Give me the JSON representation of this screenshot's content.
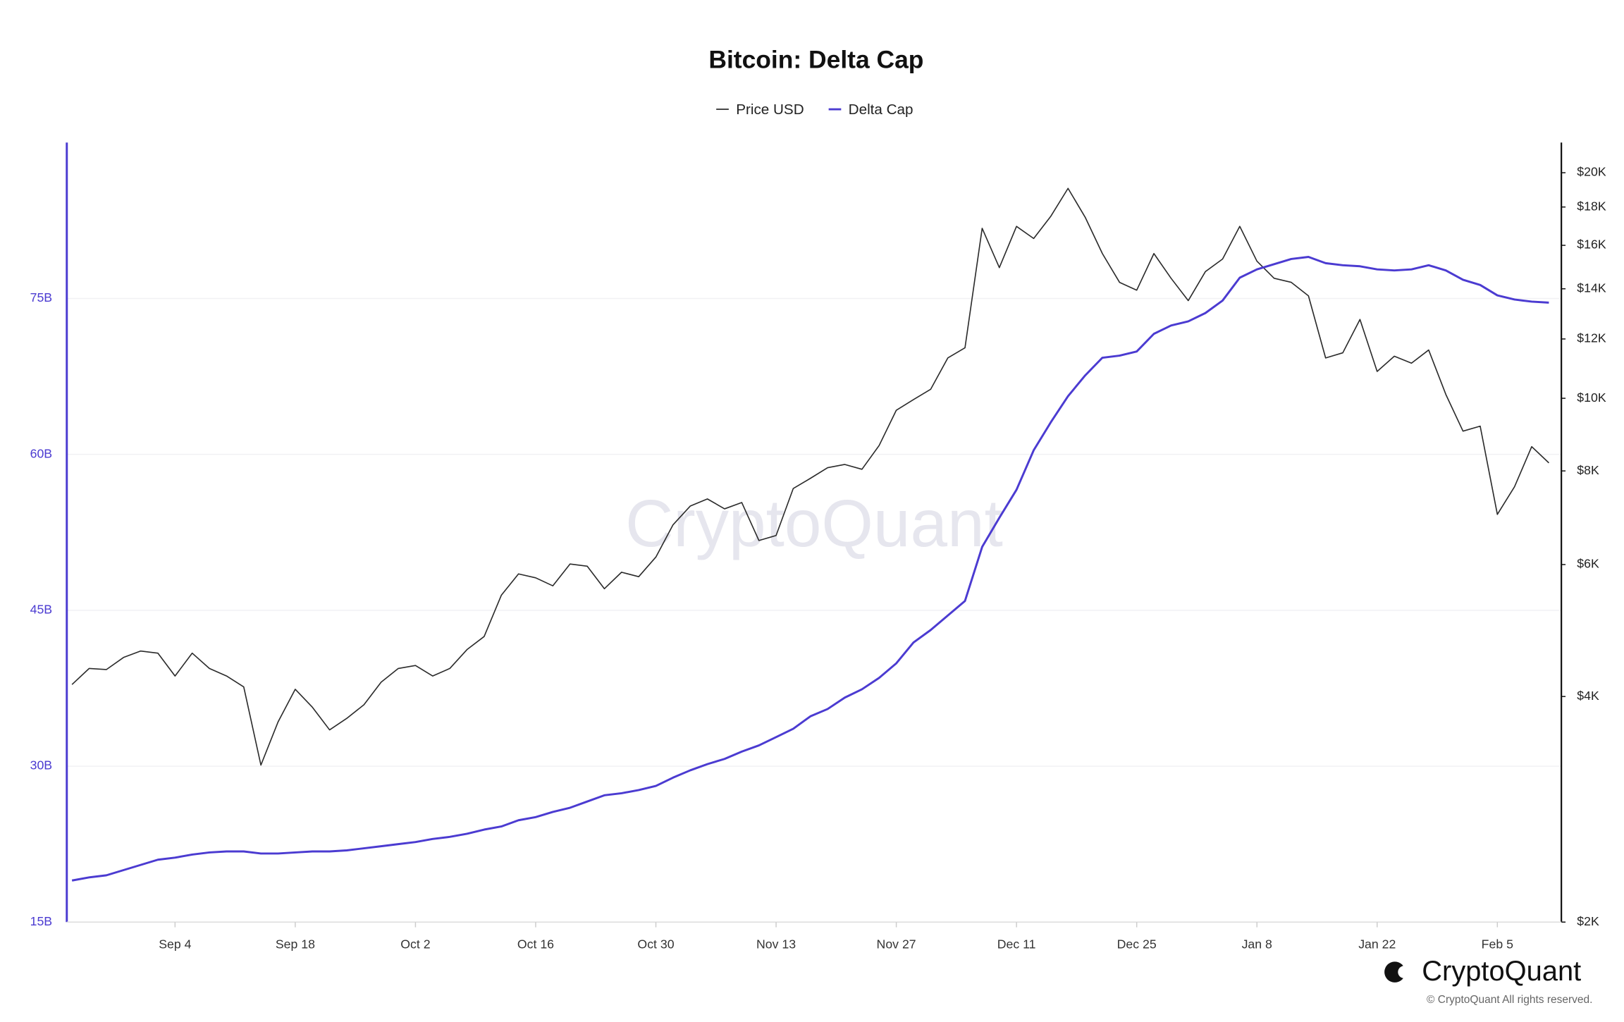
{
  "chart_data": {
    "type": "line",
    "title": "Bitcoin: Delta Cap",
    "watermark": "CryptoQuant",
    "brand": "CryptoQuant",
    "copyright": "© CryptoQuant All rights reserved.",
    "categories": [
      null,
      null,
      null,
      null,
      null,
      null,
      "Sep 4",
      null,
      null,
      null,
      null,
      null,
      null,
      "Sep 18",
      null,
      null,
      null,
      null,
      null,
      null,
      "Oct 2",
      null,
      null,
      null,
      null,
      null,
      null,
      "Oct 16",
      null,
      null,
      null,
      null,
      null,
      null,
      "Oct 30",
      null,
      null,
      null,
      null,
      null,
      null,
      "Nov 13",
      null,
      null,
      null,
      null,
      null,
      null,
      "Nov 27",
      null,
      null,
      null,
      null,
      null,
      null,
      "Dec 11",
      null,
      null,
      null,
      null,
      null,
      null,
      "Dec 25",
      null,
      null,
      null,
      null,
      null,
      null,
      "Jan 8",
      null,
      null,
      null,
      null,
      null,
      null,
      "Jan 22",
      null,
      null,
      null,
      null,
      null,
      null,
      "Feb 5",
      null,
      null,
      null
    ],
    "series": [
      {
        "name": "Price USD",
        "color": "#2b2b2b",
        "axis": "y2",
        "values": [
          4150,
          4360,
          4345,
          4510,
          4600,
          4570,
          4260,
          4570,
          4360,
          4260,
          4120,
          3240,
          3700,
          4090,
          3870,
          3610,
          3740,
          3900,
          4180,
          4360,
          4400,
          4260,
          4360,
          4620,
          4810,
          5460,
          5830,
          5760,
          5620,
          6010,
          5970,
          5570,
          5860,
          5780,
          6140,
          6780,
          7180,
          7340,
          7120,
          7260,
          6460,
          6560,
          7580,
          7820,
          8080,
          8160,
          8040,
          8650,
          9640,
          9960,
          10280,
          11320,
          11680,
          16860,
          14940,
          16960,
          16340,
          17500,
          19060,
          17440,
          15600,
          14280,
          13940,
          15600,
          14460,
          13500,
          14760,
          15340,
          16960,
          15240,
          14460,
          14280,
          13700,
          11320,
          11500,
          12740,
          10860,
          11380,
          11140,
          11600,
          10120,
          9040,
          9180,
          7000,
          7620,
          8620,
          8200
        ]
      },
      {
        "name": "Delta Cap",
        "color": "#4b3bd1",
        "values": [
          19.0,
          19.3,
          19.5,
          20.0,
          20.5,
          21.0,
          21.2,
          21.5,
          21.7,
          21.8,
          21.8,
          21.6,
          21.6,
          21.7,
          21.8,
          21.8,
          21.9,
          22.1,
          22.3,
          22.5,
          22.7,
          23.0,
          23.2,
          23.5,
          23.9,
          24.2,
          24.8,
          25.1,
          25.6,
          26.0,
          26.6,
          27.2,
          27.4,
          27.7,
          28.1,
          28.9,
          29.6,
          30.2,
          30.7,
          31.4,
          32.0,
          32.8,
          33.6,
          34.8,
          35.5,
          36.6,
          37.4,
          38.5,
          39.9,
          41.9,
          43.1,
          44.5,
          45.9,
          51.1,
          53.9,
          56.6,
          60.4,
          63.1,
          65.6,
          67.6,
          69.3,
          69.5,
          69.9,
          71.6,
          72.4,
          72.8,
          73.6,
          74.8,
          77.0,
          77.8,
          78.3,
          78.8,
          79.0,
          78.4,
          78.2,
          78.1,
          77.8,
          77.7,
          77.8,
          78.2,
          77.7,
          76.8,
          76.3,
          75.3,
          74.9,
          74.7,
          74.6
        ]
      }
    ],
    "ylim": [
      15,
      90
    ],
    "yticks": [
      {
        "value": 15,
        "label": "15B"
      },
      {
        "value": 30,
        "label": "30B"
      },
      {
        "value": 45,
        "label": "45B"
      },
      {
        "value": 60,
        "label": "60B"
      },
      {
        "value": 75,
        "label": "75B"
      }
    ],
    "y2lim": [
      2000,
      21940
    ],
    "y2log": true,
    "y2ticks": [
      {
        "value": 2000,
        "label": "$2K"
      },
      {
        "value": 4000,
        "label": "$4K"
      },
      {
        "value": 6000,
        "label": "$6K"
      },
      {
        "value": 8000,
        "label": "$8K"
      },
      {
        "value": 10000,
        "label": "$10K"
      },
      {
        "value": 12000,
        "label": "$12K"
      },
      {
        "value": 14000,
        "label": "$14K"
      },
      {
        "value": 16000,
        "label": "$16K"
      },
      {
        "value": 18000,
        "label": "$18K"
      },
      {
        "value": 20000,
        "label": "$20K"
      }
    ],
    "grid": true
  }
}
